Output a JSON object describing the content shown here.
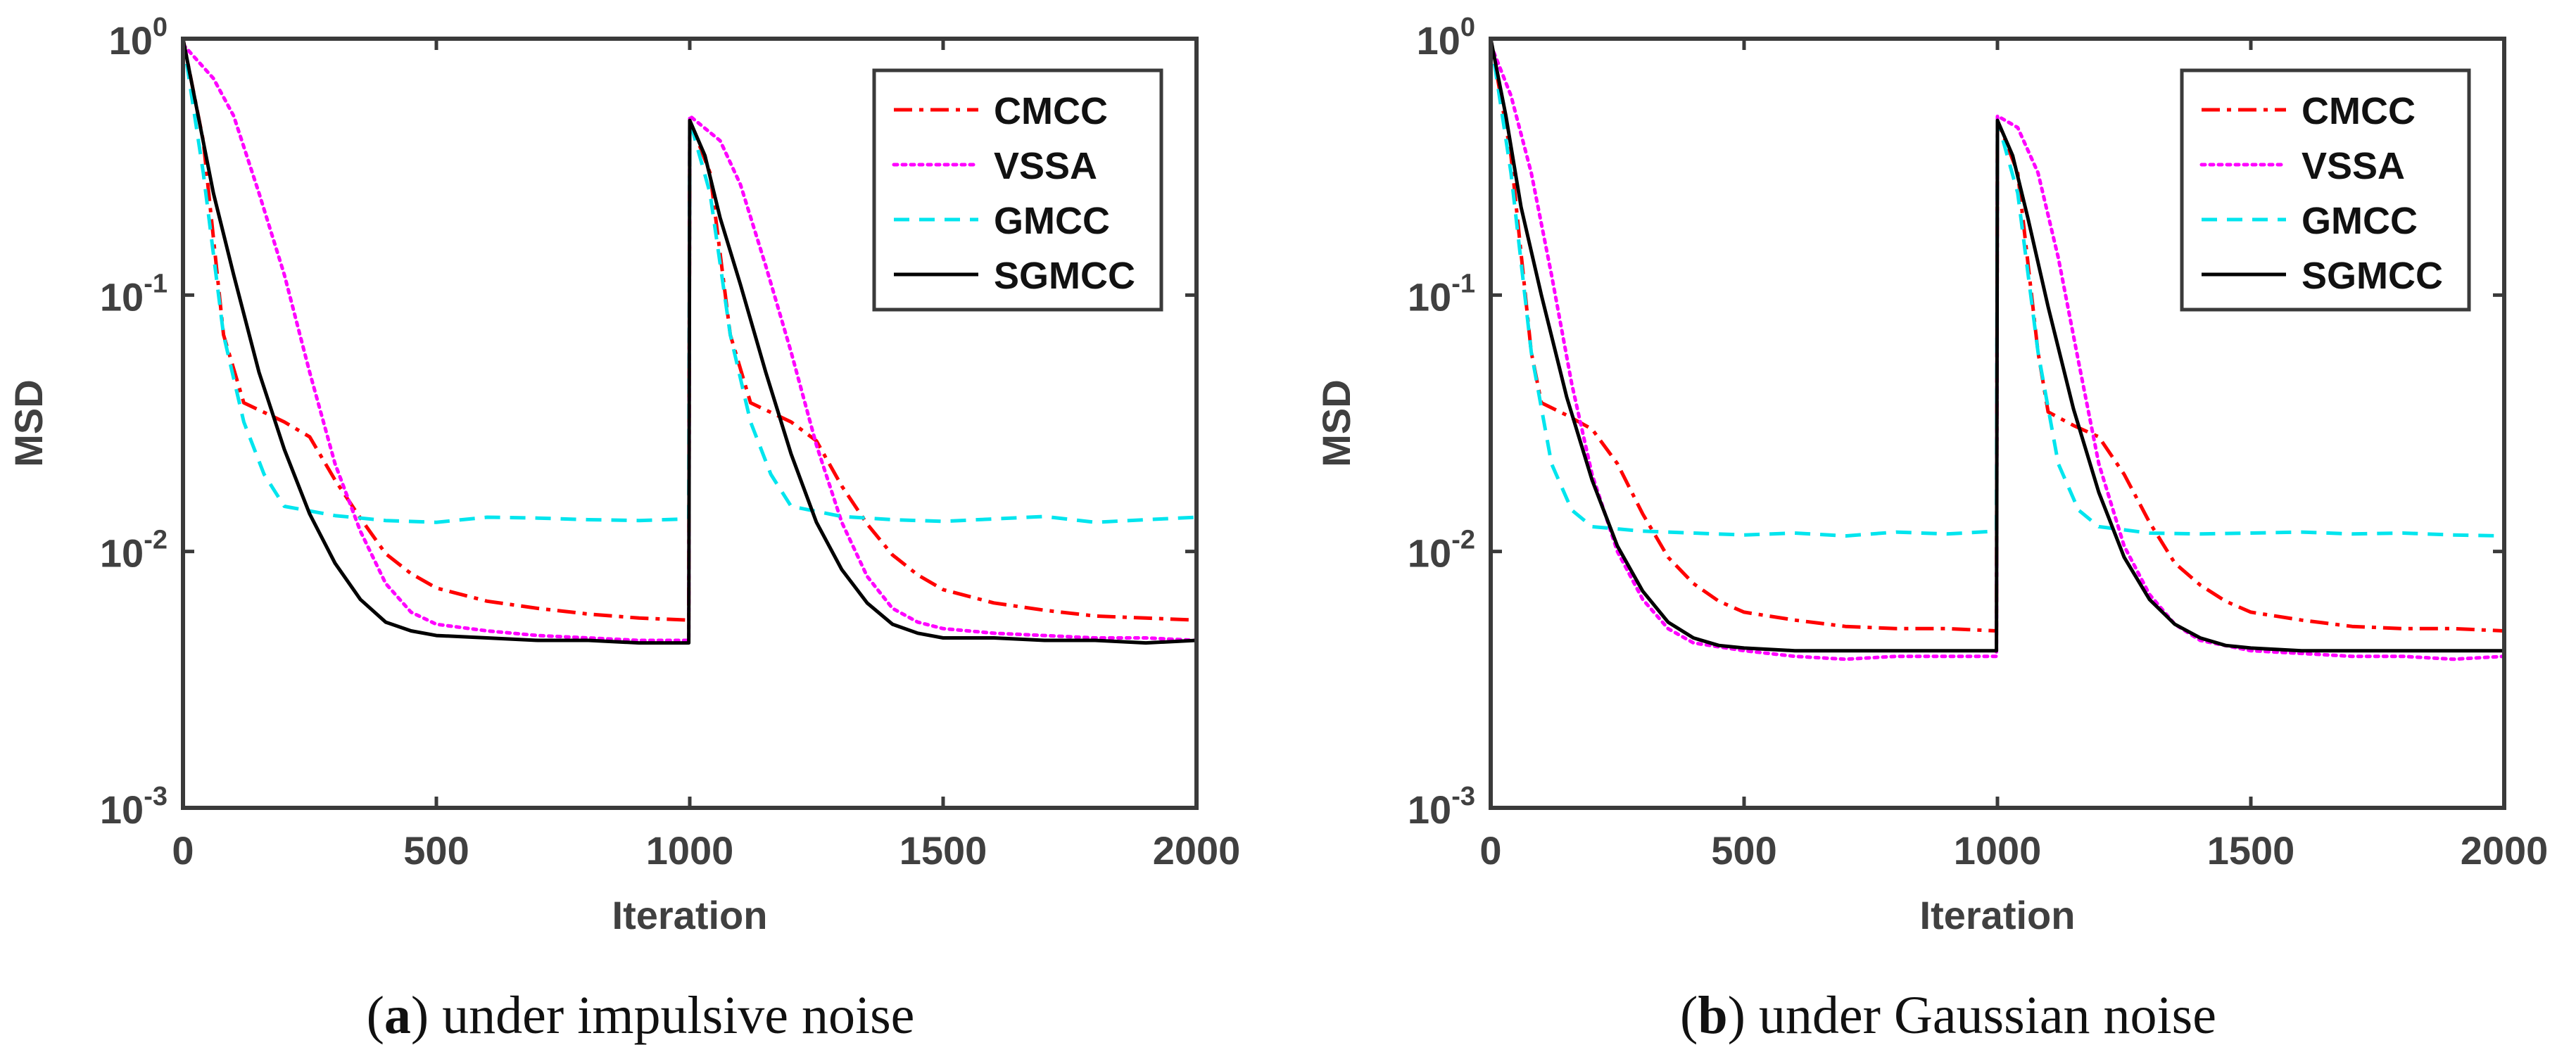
{
  "chart_data": [
    {
      "type": "line",
      "panel": "a",
      "caption": "under impulsive noise",
      "xlabel": "Iteration",
      "ylabel": "MSD",
      "yscale": "log",
      "xlim": [
        0,
        2000
      ],
      "ylim": [
        0.001,
        1
      ],
      "xticks": [
        "0",
        "500",
        "1000",
        "1500",
        "2000"
      ],
      "yticks": [
        {
          "base": "10",
          "exp": "0"
        },
        {
          "base": "10",
          "exp": "-1"
        },
        {
          "base": "10",
          "exp": "-2"
        },
        {
          "base": "10",
          "exp": "-3"
        }
      ],
      "legend_position": "top-right",
      "series": [
        {
          "name": "CMCC",
          "color": "#ff0000",
          "style": "dashdot",
          "points": [
            [
              0,
              1
            ],
            [
              40,
              0.4
            ],
            [
              80,
              0.07
            ],
            [
              120,
              0.038
            ],
            [
              200,
              0.032
            ],
            [
              250,
              0.028
            ],
            [
              300,
              0.019
            ],
            [
              350,
              0.0135
            ],
            [
              400,
              0.0098
            ],
            [
              450,
              0.0082
            ],
            [
              500,
              0.0072
            ],
            [
              600,
              0.0064
            ],
            [
              700,
              0.006
            ],
            [
              800,
              0.0057
            ],
            [
              900,
              0.0055
            ],
            [
              998,
              0.0054
            ],
            [
              1000,
              0.48
            ],
            [
              1040,
              0.3
            ],
            [
              1080,
              0.07
            ],
            [
              1120,
              0.038
            ],
            [
              1200,
              0.032
            ],
            [
              1250,
              0.027
            ],
            [
              1300,
              0.018
            ],
            [
              1350,
              0.0128
            ],
            [
              1400,
              0.0097
            ],
            [
              1450,
              0.0081
            ],
            [
              1500,
              0.0071
            ],
            [
              1600,
              0.0063
            ],
            [
              1700,
              0.0059
            ],
            [
              1800,
              0.0056
            ],
            [
              1900,
              0.0055
            ],
            [
              2000,
              0.0054
            ]
          ]
        },
        {
          "name": "VSSA",
          "color": "#ff00ff",
          "style": "dotted",
          "points": [
            [
              0,
              0.95
            ],
            [
              60,
              0.7
            ],
            [
              100,
              0.5
            ],
            [
              150,
              0.25
            ],
            [
              200,
              0.12
            ],
            [
              250,
              0.05
            ],
            [
              300,
              0.022
            ],
            [
              350,
              0.012
            ],
            [
              400,
              0.0075
            ],
            [
              450,
              0.0058
            ],
            [
              500,
              0.0052
            ],
            [
              600,
              0.0049
            ],
            [
              700,
              0.0047
            ],
            [
              800,
              0.0046
            ],
            [
              900,
              0.0045
            ],
            [
              998,
              0.0045
            ],
            [
              1000,
              0.5
            ],
            [
              1060,
              0.4
            ],
            [
              1100,
              0.27
            ],
            [
              1150,
              0.13
            ],
            [
              1200,
              0.06
            ],
            [
              1250,
              0.026
            ],
            [
              1300,
              0.013
            ],
            [
              1350,
              0.008
            ],
            [
              1400,
              0.006
            ],
            [
              1450,
              0.0053
            ],
            [
              1500,
              0.005
            ],
            [
              1600,
              0.0048
            ],
            [
              1700,
              0.0047
            ],
            [
              1800,
              0.0046
            ],
            [
              1900,
              0.0046
            ],
            [
              2000,
              0.0045
            ]
          ]
        },
        {
          "name": "GMCC",
          "color": "#00e5ee",
          "style": "dashed",
          "points": [
            [
              0,
              1
            ],
            [
              40,
              0.3
            ],
            [
              80,
              0.07
            ],
            [
              120,
              0.032
            ],
            [
              160,
              0.02
            ],
            [
              200,
              0.015
            ],
            [
              300,
              0.0138
            ],
            [
              400,
              0.0132
            ],
            [
              500,
              0.013
            ],
            [
              600,
              0.0136
            ],
            [
              700,
              0.0135
            ],
            [
              800,
              0.0133
            ],
            [
              900,
              0.0132
            ],
            [
              998,
              0.0134
            ],
            [
              1000,
              0.48
            ],
            [
              1040,
              0.25
            ],
            [
              1080,
              0.07
            ],
            [
              1120,
              0.032
            ],
            [
              1160,
              0.02
            ],
            [
              1200,
              0.015
            ],
            [
              1300,
              0.0137
            ],
            [
              1400,
              0.0133
            ],
            [
              1500,
              0.0131
            ],
            [
              1600,
              0.0134
            ],
            [
              1700,
              0.0137
            ],
            [
              1800,
              0.013
            ],
            [
              1900,
              0.0133
            ],
            [
              2000,
              0.0136
            ]
          ]
        },
        {
          "name": "SGMCC",
          "color": "#000000",
          "style": "solid",
          "points": [
            [
              0,
              1
            ],
            [
              30,
              0.5
            ],
            [
              60,
              0.25
            ],
            [
              100,
              0.12
            ],
            [
              150,
              0.05
            ],
            [
              200,
              0.025
            ],
            [
              250,
              0.014
            ],
            [
              300,
              0.009
            ],
            [
              350,
              0.0065
            ],
            [
              400,
              0.0053
            ],
            [
              450,
              0.0049
            ],
            [
              500,
              0.0047
            ],
            [
              600,
              0.0046
            ],
            [
              700,
              0.0045
            ],
            [
              800,
              0.0045
            ],
            [
              900,
              0.0044
            ],
            [
              998,
              0.0044
            ],
            [
              1000,
              0.48
            ],
            [
              1030,
              0.35
            ],
            [
              1060,
              0.2
            ],
            [
              1100,
              0.11
            ],
            [
              1150,
              0.05
            ],
            [
              1200,
              0.024
            ],
            [
              1250,
              0.013
            ],
            [
              1300,
              0.0085
            ],
            [
              1350,
              0.0063
            ],
            [
              1400,
              0.0052
            ],
            [
              1450,
              0.0048
            ],
            [
              1500,
              0.0046
            ],
            [
              1600,
              0.0046
            ],
            [
              1700,
              0.0045
            ],
            [
              1800,
              0.0045
            ],
            [
              1900,
              0.0044
            ],
            [
              2000,
              0.0045
            ]
          ]
        }
      ]
    },
    {
      "type": "line",
      "panel": "b",
      "caption": "under Gaussian noise",
      "xlabel": "Iteration",
      "ylabel": "MSD",
      "yscale": "log",
      "xlim": [
        0,
        2000
      ],
      "ylim": [
        0.001,
        1
      ],
      "xticks": [
        "0",
        "500",
        "1000",
        "1500",
        "2000"
      ],
      "yticks": [
        {
          "base": "10",
          "exp": "0"
        },
        {
          "base": "10",
          "exp": "-1"
        },
        {
          "base": "10",
          "exp": "-2"
        },
        {
          "base": "10",
          "exp": "-3"
        }
      ],
      "legend_position": "top-right",
      "series": [
        {
          "name": "CMCC",
          "color": "#ff0000",
          "style": "dashdot",
          "points": [
            [
              0,
              1
            ],
            [
              40,
              0.35
            ],
            [
              80,
              0.06
            ],
            [
              100,
              0.038
            ],
            [
              150,
              0.034
            ],
            [
              200,
              0.03
            ],
            [
              250,
              0.022
            ],
            [
              300,
              0.014
            ],
            [
              350,
              0.0095
            ],
            [
              400,
              0.0075
            ],
            [
              450,
              0.0064
            ],
            [
              500,
              0.0058
            ],
            [
              600,
              0.0054
            ],
            [
              700,
              0.0051
            ],
            [
              800,
              0.005
            ],
            [
              900,
              0.005
            ],
            [
              998,
              0.0049
            ],
            [
              1000,
              0.48
            ],
            [
              1040,
              0.3
            ],
            [
              1080,
              0.06
            ],
            [
              1100,
              0.035
            ],
            [
              1150,
              0.031
            ],
            [
              1200,
              0.028
            ],
            [
              1250,
              0.02
            ],
            [
              1300,
              0.013
            ],
            [
              1350,
              0.009
            ],
            [
              1400,
              0.0074
            ],
            [
              1450,
              0.0064
            ],
            [
              1500,
              0.0058
            ],
            [
              1600,
              0.0054
            ],
            [
              1700,
              0.0051
            ],
            [
              1800,
              0.005
            ],
            [
              1900,
              0.005
            ],
            [
              2000,
              0.0049
            ]
          ]
        },
        {
          "name": "VSSA",
          "color": "#ff00ff",
          "style": "dotted",
          "points": [
            [
              0,
              0.95
            ],
            [
              40,
              0.6
            ],
            [
              80,
              0.3
            ],
            [
              120,
              0.12
            ],
            [
              160,
              0.045
            ],
            [
              200,
              0.02
            ],
            [
              250,
              0.01
            ],
            [
              300,
              0.0065
            ],
            [
              350,
              0.005
            ],
            [
              400,
              0.0044
            ],
            [
              500,
              0.0041
            ],
            [
              600,
              0.0039
            ],
            [
              700,
              0.0038
            ],
            [
              800,
              0.0039
            ],
            [
              900,
              0.0039
            ],
            [
              998,
              0.0039
            ],
            [
              1000,
              0.5
            ],
            [
              1040,
              0.45
            ],
            [
              1080,
              0.3
            ],
            [
              1120,
              0.14
            ],
            [
              1160,
              0.055
            ],
            [
              1200,
              0.022
            ],
            [
              1250,
              0.0105
            ],
            [
              1300,
              0.0068
            ],
            [
              1350,
              0.0052
            ],
            [
              1400,
              0.0045
            ],
            [
              1500,
              0.0041
            ],
            [
              1600,
              0.004
            ],
            [
              1700,
              0.0039
            ],
            [
              1800,
              0.0039
            ],
            [
              1900,
              0.0038
            ],
            [
              2000,
              0.0039
            ]
          ]
        },
        {
          "name": "GMCC",
          "color": "#00e5ee",
          "style": "dashed",
          "points": [
            [
              0,
              1
            ],
            [
              40,
              0.3
            ],
            [
              80,
              0.06
            ],
            [
              120,
              0.022
            ],
            [
              160,
              0.0145
            ],
            [
              200,
              0.0125
            ],
            [
              300,
              0.012
            ],
            [
              400,
              0.0118
            ],
            [
              500,
              0.0116
            ],
            [
              600,
              0.0118
            ],
            [
              700,
              0.0115
            ],
            [
              800,
              0.0119
            ],
            [
              900,
              0.0117
            ],
            [
              998,
              0.012
            ],
            [
              1000,
              0.48
            ],
            [
              1040,
              0.25
            ],
            [
              1080,
              0.06
            ],
            [
              1120,
              0.022
            ],
            [
              1160,
              0.0145
            ],
            [
              1200,
              0.0125
            ],
            [
              1300,
              0.0118
            ],
            [
              1400,
              0.0117
            ],
            [
              1500,
              0.0118
            ],
            [
              1600,
              0.0119
            ],
            [
              1700,
              0.0117
            ],
            [
              1800,
              0.0118
            ],
            [
              1900,
              0.0116
            ],
            [
              2000,
              0.0115
            ]
          ]
        },
        {
          "name": "SGMCC",
          "color": "#000000",
          "style": "solid",
          "points": [
            [
              0,
              1
            ],
            [
              30,
              0.5
            ],
            [
              60,
              0.22
            ],
            [
              100,
              0.1
            ],
            [
              150,
              0.04
            ],
            [
              200,
              0.019
            ],
            [
              250,
              0.0105
            ],
            [
              300,
              0.007
            ],
            [
              350,
              0.0053
            ],
            [
              400,
              0.0046
            ],
            [
              450,
              0.0043
            ],
            [
              500,
              0.0042
            ],
            [
              600,
              0.0041
            ],
            [
              700,
              0.0041
            ],
            [
              800,
              0.0041
            ],
            [
              900,
              0.0041
            ],
            [
              998,
              0.0041
            ],
            [
              1000,
              0.48
            ],
            [
              1030,
              0.35
            ],
            [
              1060,
              0.2
            ],
            [
              1100,
              0.09
            ],
            [
              1150,
              0.036
            ],
            [
              1200,
              0.017
            ],
            [
              1250,
              0.0095
            ],
            [
              1300,
              0.0065
            ],
            [
              1350,
              0.0052
            ],
            [
              1400,
              0.0046
            ],
            [
              1450,
              0.0043
            ],
            [
              1500,
              0.0042
            ],
            [
              1600,
              0.0041
            ],
            [
              1700,
              0.0041
            ],
            [
              1800,
              0.0041
            ],
            [
              1900,
              0.0041
            ],
            [
              2000,
              0.0041
            ]
          ]
        }
      ]
    }
  ]
}
